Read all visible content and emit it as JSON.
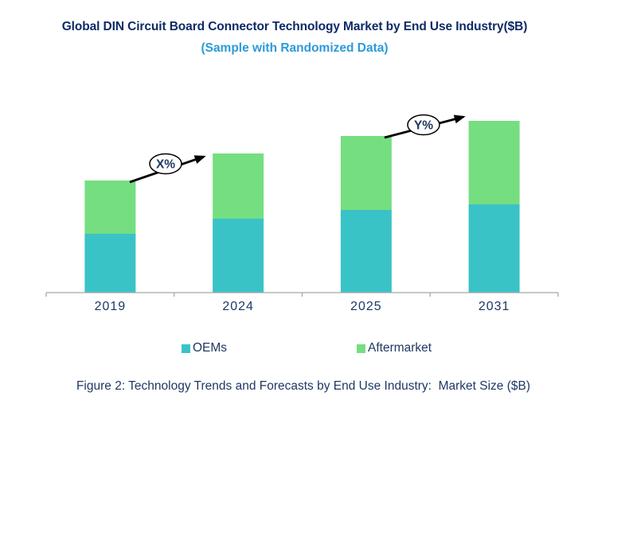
{
  "header": {
    "title": "Global DIN Circuit Board Connector Technology Market by End Use Industry($B)",
    "subtitle": "(Sample with Randomized Data)"
  },
  "caption": "Figure 2: Technology Trends and Forecasts by End Use Industry:  Market Size ($B)",
  "chart_data": {
    "type": "bar",
    "stacked": true,
    "categories": [
      "2019",
      "2024",
      "2025",
      "2031"
    ],
    "series": [
      {
        "name": "OEMs",
        "color": "#3ac3c7",
        "values": [
          7.4,
          9.3,
          10.4,
          11.1
        ]
      },
      {
        "name": "Aftermarket",
        "color": "#75de81",
        "values": [
          6.7,
          8.2,
          9.3,
          10.5
        ]
      }
    ],
    "stack_totals": [
      14.1,
      17.5,
      19.7,
      21.6
    ],
    "title": "Global DIN Circuit Board Connector Technology Market by End Use Industry($B)",
    "subtitle": "(Sample with Randomized Data)",
    "xlabel": "",
    "ylabel": "",
    "y_axis": {
      "visible": false,
      "estimated_unit": "$B",
      "ylim": [
        0,
        24
      ]
    },
    "grid": false,
    "legend": {
      "position": "bottom",
      "entries": [
        "OEMs",
        "Aftermarket"
      ]
    },
    "annotations": [
      {
        "label": "X%"
      },
      {
        "label": "Y%"
      }
    ]
  },
  "colors": {
    "title_text": "#0d2a66",
    "subtitle_text": "#2e9ad8",
    "axis_line": "#a6a6a6",
    "year_label_text": "#1f3864",
    "legend_text": "#1f3864",
    "annotation_text": "#1f3864",
    "arrow": "#000000",
    "ellipse_fill": "#ffffff"
  }
}
